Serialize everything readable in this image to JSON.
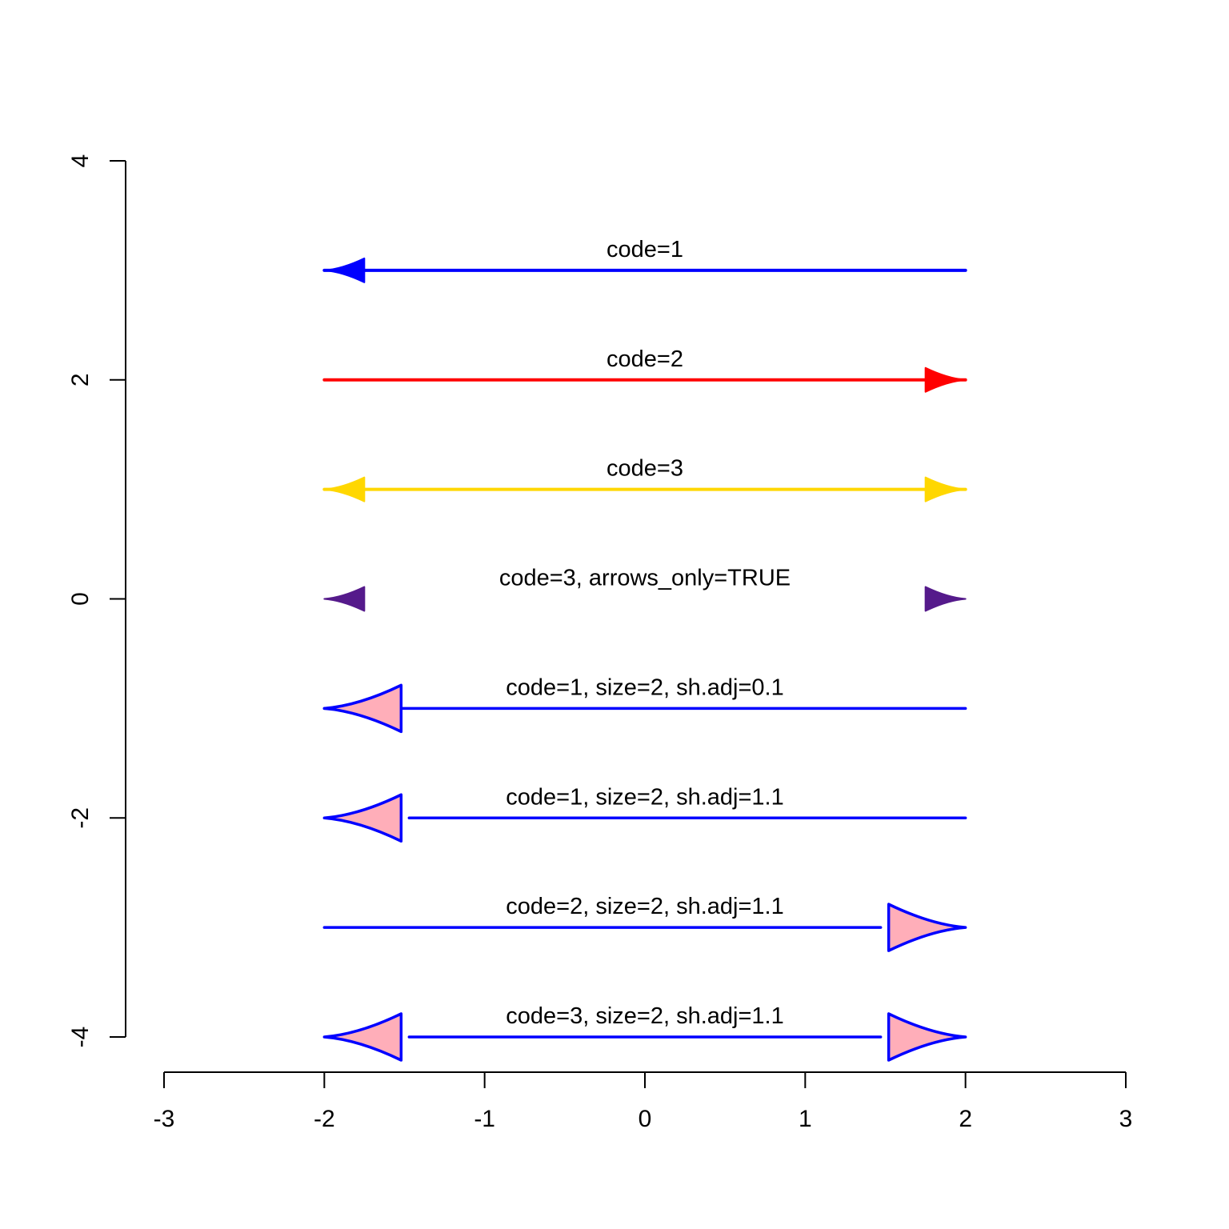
{
  "chart_data": {
    "type": "arrows",
    "title": "",
    "xlabel": "",
    "ylabel": "",
    "xlim": [
      -3,
      3
    ],
    "ylim": [
      -4,
      4
    ],
    "x_ticks": [
      -3,
      -2,
      -1,
      0,
      1,
      2,
      3
    ],
    "y_ticks": [
      -4,
      -2,
      0,
      2,
      4
    ],
    "x_tick_labels": [
      "-3",
      "-2",
      "-1",
      "0",
      "1",
      "2",
      "3"
    ],
    "y_tick_labels": [
      "-4",
      "-2",
      "0",
      "2",
      "4"
    ],
    "grid": false,
    "arrows": [
      {
        "label": "code=1",
        "x0": -2,
        "x1": 2,
        "y": 3,
        "code": 1,
        "color": "#0000ff",
        "fill": "#0000ff",
        "size": 1,
        "sh_adj": 0,
        "arrows_only": false
      },
      {
        "label": "code=2",
        "x0": -2,
        "x1": 2,
        "y": 2,
        "code": 2,
        "color": "#ff0000",
        "fill": "#ff0000",
        "size": 1,
        "sh_adj": 0,
        "arrows_only": false
      },
      {
        "label": "code=3",
        "x0": -2,
        "x1": 2,
        "y": 1,
        "code": 3,
        "color": "#ffd700",
        "fill": "#ffd700",
        "size": 1,
        "sh_adj": 0,
        "arrows_only": false
      },
      {
        "label": "code=3, arrows_only=TRUE",
        "x0": -2,
        "x1": 2,
        "y": 0,
        "code": 3,
        "color": "#551a8b",
        "fill": "#551a8b",
        "size": 1,
        "sh_adj": 0,
        "arrows_only": true
      },
      {
        "label": "code=1, size=2, sh.adj=0.1",
        "x0": -2,
        "x1": 2,
        "y": -1,
        "code": 1,
        "color": "#0000ff",
        "fill": "#ffaeb9",
        "size": 2,
        "sh_adj": 0.1,
        "arrows_only": false
      },
      {
        "label": "code=1, size=2, sh.adj=1.1",
        "x0": -2,
        "x1": 2,
        "y": -2,
        "code": 1,
        "color": "#0000ff",
        "fill": "#ffaeb9",
        "size": 2,
        "sh_adj": 1.1,
        "arrows_only": false
      },
      {
        "label": "code=2, size=2, sh.adj=1.1",
        "x0": -2,
        "x1": 2,
        "y": -3,
        "code": 2,
        "color": "#0000ff",
        "fill": "#ffaeb9",
        "size": 2,
        "sh_adj": 1.1,
        "arrows_only": false
      },
      {
        "label": "code=3, size=2, sh.adj=1.1",
        "x0": -2,
        "x1": 2,
        "y": -4,
        "code": 3,
        "color": "#0000ff",
        "fill": "#ffaeb9",
        "size": 2,
        "sh_adj": 1.1,
        "arrows_only": false
      }
    ]
  }
}
